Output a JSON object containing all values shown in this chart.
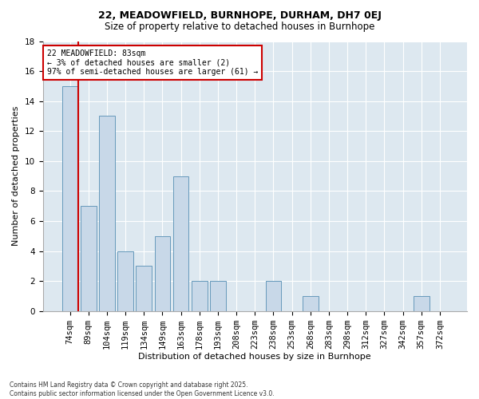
{
  "title1": "22, MEADOWFIELD, BURNHOPE, DURHAM, DH7 0EJ",
  "title2": "Size of property relative to detached houses in Burnhope",
  "xlabel": "Distribution of detached houses by size in Burnhope",
  "ylabel": "Number of detached properties",
  "footer": "Contains HM Land Registry data © Crown copyright and database right 2025.\nContains public sector information licensed under the Open Government Licence v3.0.",
  "categories": [
    "74sqm",
    "89sqm",
    "104sqm",
    "119sqm",
    "134sqm",
    "149sqm",
    "163sqm",
    "178sqm",
    "193sqm",
    "208sqm",
    "223sqm",
    "238sqm",
    "253sqm",
    "268sqm",
    "283sqm",
    "298sqm",
    "312sqm",
    "327sqm",
    "342sqm",
    "357sqm",
    "372sqm"
  ],
  "values": [
    15,
    7,
    13,
    4,
    3,
    5,
    9,
    2,
    2,
    0,
    0,
    2,
    0,
    1,
    0,
    0,
    0,
    0,
    0,
    1,
    0
  ],
  "bar_color": "#c8d8e8",
  "bar_edge_color": "#6699bb",
  "annotation_text": "22 MEADOWFIELD: 83sqm\n← 3% of detached houses are smaller (2)\n97% of semi-detached houses are larger (61) →",
  "vline_color": "#cc0000",
  "annotation_box_color": "#cc0000",
  "background_color": "#dde8f0",
  "ylim": [
    0,
    18
  ],
  "yticks": [
    0,
    2,
    4,
    6,
    8,
    10,
    12,
    14,
    16,
    18
  ],
  "title1_fontsize": 9,
  "title2_fontsize": 8.5,
  "xlabel_fontsize": 8,
  "ylabel_fontsize": 8,
  "tick_fontsize": 7.5,
  "footer_fontsize": 5.5
}
